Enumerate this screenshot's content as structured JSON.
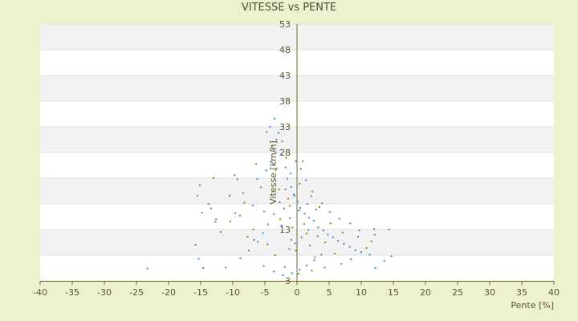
{
  "chart_data": {
    "type": "scatter",
    "title": "VITESSE vs PENTE",
    "xlabel": "Pente [%]",
    "ylabel": "Vitesse [km/h]",
    "xlim": [
      -40,
      40
    ],
    "ylim": [
      3,
      53
    ],
    "x_ticks": [
      -40,
      -35,
      -30,
      -25,
      -20,
      -15,
      -10,
      -5,
      0,
      5,
      10,
      15,
      20,
      25,
      30,
      35,
      40
    ],
    "y_ticks": [
      3,
      8,
      13,
      18,
      23,
      28,
      33,
      38,
      43,
      48,
      53
    ],
    "y_tick_labels": [
      "3",
      "",
      "13",
      "",
      "",
      "28",
      "33",
      "38",
      "43",
      "48",
      "53"
    ],
    "grid": "horizontal alternating bands",
    "legend": "none",
    "series": [
      {
        "color": "#3a8ad6",
        "points": [
          [
            -23.3,
            5.4
          ],
          [
            -14.6,
            5.5
          ],
          [
            -11.1,
            5.6
          ],
          [
            -15.3,
            7.3
          ],
          [
            -15.8,
            10.0
          ],
          [
            -14.8,
            16.3
          ],
          [
            -15.1,
            21.6
          ],
          [
            -13.8,
            18.0
          ],
          [
            -12.6,
            15.0
          ],
          [
            -9.6,
            16.2
          ],
          [
            -10.5,
            19.6
          ],
          [
            -9.3,
            22.8
          ],
          [
            -8.4,
            20.1
          ],
          [
            -6.9,
            17.7
          ],
          [
            -6.7,
            11.0
          ],
          [
            -6.2,
            22.8
          ],
          [
            -4.8,
            24.5
          ],
          [
            -4.1,
            26.2
          ],
          [
            -3.6,
            28.5
          ],
          [
            -3.2,
            30.5
          ],
          [
            -4.2,
            33.0
          ],
          [
            -3.5,
            34.6
          ],
          [
            -2.9,
            31.8
          ],
          [
            -2.4,
            27.7
          ],
          [
            -1.8,
            25.1
          ],
          [
            -1.5,
            22.9
          ],
          [
            -0.9,
            21.3
          ],
          [
            -0.4,
            19.6
          ],
          [
            0.1,
            18.4
          ],
          [
            0.5,
            17.2
          ],
          [
            1.2,
            16.1
          ],
          [
            1.9,
            15.3
          ],
          [
            2.6,
            14.7
          ],
          [
            3.3,
            13.4
          ],
          [
            4.1,
            12.8
          ],
          [
            4.8,
            12.0
          ],
          [
            5.6,
            11.5
          ],
          [
            6.4,
            10.8
          ],
          [
            7.3,
            10.2
          ],
          [
            8.2,
            9.6
          ],
          [
            9.1,
            9.0
          ],
          [
            10.0,
            8.6
          ],
          [
            11.3,
            8.1
          ],
          [
            12.2,
            5.5
          ],
          [
            13.6,
            6.9
          ],
          [
            14.7,
            7.8
          ],
          [
            14.3,
            13.0
          ],
          [
            12.1,
            12.0
          ],
          [
            9.7,
            12.8
          ],
          [
            8.3,
            14.2
          ],
          [
            6.6,
            15.1
          ],
          [
            5.1,
            16.4
          ],
          [
            3.9,
            18.1
          ],
          [
            2.4,
            20.4
          ],
          [
            1.4,
            22.6
          ],
          [
            0.6,
            24.8
          ],
          [
            -0.2,
            26.3
          ],
          [
            -1.0,
            23.9
          ],
          [
            -1.8,
            20.8
          ],
          [
            -2.7,
            18.3
          ],
          [
            -3.6,
            16.0
          ],
          [
            -4.5,
            14.0
          ],
          [
            -5.3,
            12.3
          ],
          [
            -6.1,
            10.6
          ],
          [
            -7.5,
            8.9
          ],
          [
            -8.8,
            7.4
          ],
          [
            -5.2,
            5.9
          ],
          [
            -3.6,
            4.8
          ],
          [
            -2.2,
            4.1
          ],
          [
            -0.8,
            4.5
          ],
          [
            0.4,
            5.2
          ],
          [
            1.5,
            6.0
          ],
          [
            2.7,
            7.0
          ],
          [
            3.8,
            8.1
          ],
          [
            -1.2,
            9.2
          ],
          [
            -0.3,
            10.3
          ],
          [
            0.7,
            11.5
          ],
          [
            1.8,
            12.9
          ],
          [
            -2.4,
            13.8
          ],
          [
            -1.1,
            15.2
          ],
          [
            0.3,
            16.7
          ],
          [
            1.6,
            18.0
          ],
          [
            -0.5,
            19.8
          ],
          [
            2.2,
            19.5
          ],
          [
            3.0,
            16.9
          ],
          [
            -2.0,
            17.1
          ]
        ]
      },
      {
        "color": "#8a8a10",
        "points": [
          [
            -15.5,
            19.6
          ],
          [
            -13.4,
            17.1
          ],
          [
            -12.7,
            14.5
          ],
          [
            -13.0,
            23.0
          ],
          [
            -10.4,
            14.6
          ],
          [
            -9.7,
            23.6
          ],
          [
            -8.2,
            18.2
          ],
          [
            -7.7,
            11.6
          ],
          [
            -6.4,
            25.8
          ],
          [
            -5.6,
            21.2
          ],
          [
            -5.1,
            16.5
          ],
          [
            -4.7,
            32.0
          ],
          [
            -3.9,
            29.3
          ],
          [
            -3.3,
            24.6
          ],
          [
            -2.8,
            20.8
          ],
          [
            -2.3,
            30.2
          ],
          [
            -1.7,
            27.0
          ],
          [
            -1.1,
            17.6
          ],
          [
            -0.7,
            13.4
          ],
          [
            -0.2,
            8.9
          ],
          [
            0.4,
            21.9
          ],
          [
            0.9,
            26.3
          ],
          [
            1.5,
            12.2
          ],
          [
            2.0,
            9.9
          ],
          [
            2.8,
            7.6
          ],
          [
            3.5,
            17.4
          ],
          [
            4.4,
            10.5
          ],
          [
            5.2,
            14.2
          ],
          [
            5.9,
            8.3
          ],
          [
            7.1,
            12.4
          ],
          [
            8.4,
            7.2
          ],
          [
            9.5,
            11.6
          ],
          [
            10.8,
            9.4
          ],
          [
            12.0,
            13.1
          ],
          [
            11.6,
            10.7
          ],
          [
            6.9,
            6.3
          ],
          [
            4.3,
            5.6
          ],
          [
            2.3,
            5.0
          ],
          [
            0.2,
            4.4
          ],
          [
            -1.9,
            5.7
          ],
          [
            -3.4,
            8.0
          ],
          [
            -4.6,
            10.1
          ],
          [
            -6.8,
            13.0
          ],
          [
            -8.9,
            15.7
          ],
          [
            -11.9,
            12.5
          ],
          [
            -2.6,
            15.0
          ],
          [
            -0.9,
            11.0
          ],
          [
            1.1,
            14.1
          ],
          [
            3.2,
            11.7
          ],
          [
            -1.4,
            19.0
          ]
        ]
      }
    ]
  }
}
